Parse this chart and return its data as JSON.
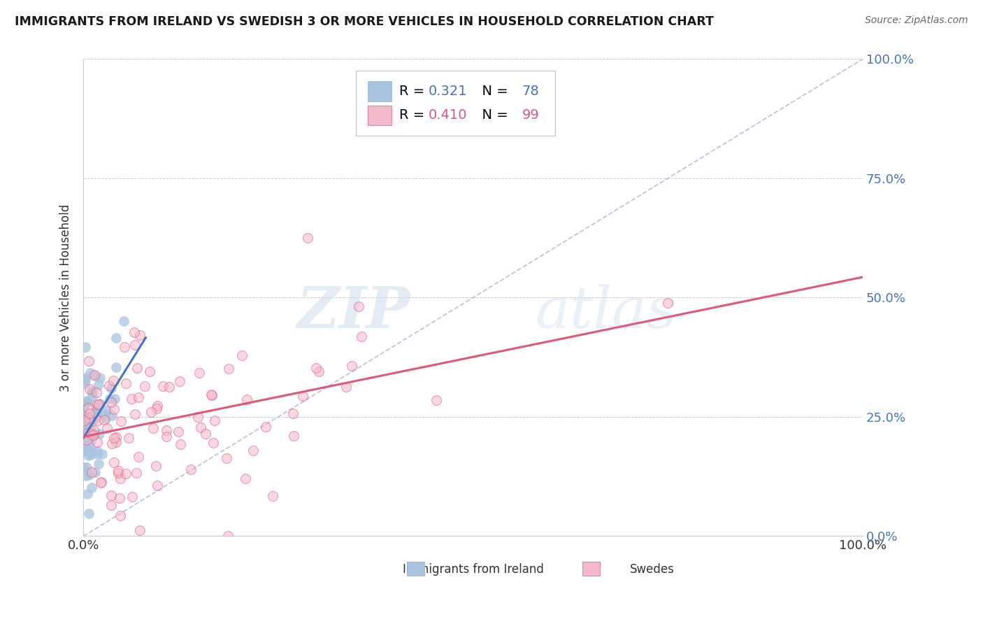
{
  "title": "IMMIGRANTS FROM IRELAND VS SWEDISH 3 OR MORE VEHICLES IN HOUSEHOLD CORRELATION CHART",
  "source": "Source: ZipAtlas.com",
  "ylabel": "3 or more Vehicles in Household",
  "legend_label1": "Immigrants from Ireland",
  "legend_label2": "Swedes",
  "R1": 0.321,
  "N1": 78,
  "R2": 0.41,
  "N2": 99,
  "blue_color": "#a8c4e0",
  "blue_line_color": "#4472c4",
  "pink_color": "#f4b8c8",
  "pink_line_color": "#e05878",
  "diag_line_color": "#aabbdd",
  "watermark_zip": "ZIP",
  "watermark_atlas": "atlas",
  "background": "#ffffff",
  "seed1": 42,
  "seed2": 77
}
